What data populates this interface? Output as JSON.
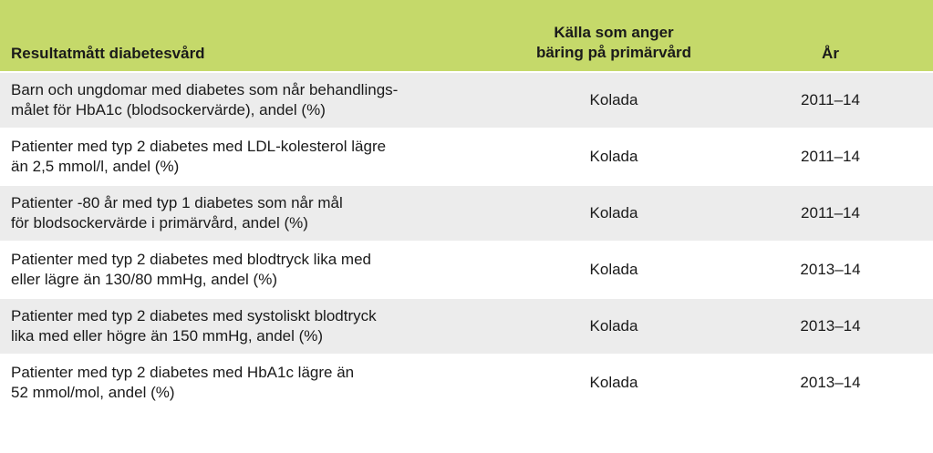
{
  "header": {
    "measure": "Resultatmått diabetesvård",
    "source": "Källa som anger\nbäring på primärvård",
    "year": "År"
  },
  "rows": [
    {
      "measure": "Barn och ungdomar med diabetes som når behandlings-\nmålet för HbA1c (blodsockervärde), andel (%)",
      "source": "Kolada",
      "year": "2011–14"
    },
    {
      "measure": "Patienter med typ 2 diabetes med LDL-kolesterol lägre\nän 2,5 mmol/l, andel (%)",
      "source": "Kolada",
      "year": "2011–14"
    },
    {
      "measure": "Patienter -80 år med typ 1 diabetes som når mål\nför blodsockervärde i primärvård, andel (%)",
      "source": "Kolada",
      "year": "2011–14"
    },
    {
      "measure": "Patienter med typ 2 diabetes med blodtryck lika med\neller lägre än 130/80 mmHg, andel (%)",
      "source": "Kolada",
      "year": "2013–14"
    },
    {
      "measure": "Patienter med typ 2 diabetes med systoliskt blodtryck\nlika med eller högre än 150 mmHg, andel (%)",
      "source": "Kolada",
      "year": "2013–14"
    },
    {
      "measure": "Patienter med typ 2 diabetes med HbA1c lägre än\n52 mmol/mol, andel (%)",
      "source": "Kolada",
      "year": "2013–14"
    }
  ]
}
